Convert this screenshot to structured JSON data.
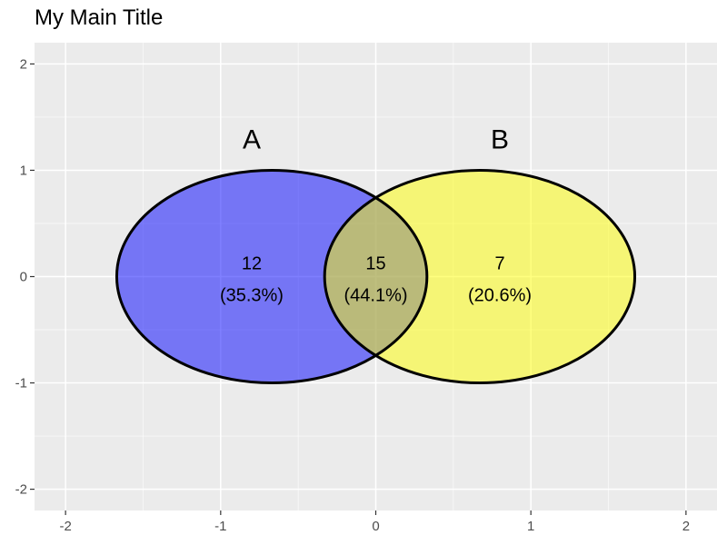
{
  "chart_data": {
    "type": "venn",
    "title": "My Main Title",
    "xlabel": "",
    "ylabel": "",
    "xlim": [
      -2.2,
      2.2
    ],
    "ylim": [
      -2.2,
      2.2
    ],
    "x_ticks": [
      -2,
      -1,
      0,
      1,
      2
    ],
    "y_ticks": [
      -2,
      -1,
      0,
      1,
      2
    ],
    "x_tick_labels": [
      "-2",
      "-1",
      "0",
      "1",
      "2"
    ],
    "y_tick_labels": [
      "-2",
      "-1",
      "0",
      "1",
      "2"
    ],
    "grid": true,
    "background": "#ebebeb",
    "sets": [
      {
        "name": "A",
        "cx": -0.67,
        "cy": 0,
        "r": 1,
        "fill": "#0000ff",
        "opacity": 0.5,
        "label_x": -0.8,
        "label_y": 1.3
      },
      {
        "name": "B",
        "cx": 0.67,
        "cy": 0,
        "r": 1,
        "fill": "#ffff00",
        "opacity": 0.5,
        "label_x": 0.8,
        "label_y": 1.3
      }
    ],
    "regions": [
      {
        "id": "A-only",
        "count": "12",
        "percent": "(35.3%)",
        "x": -0.8,
        "y": 0
      },
      {
        "id": "A-and-B",
        "count": "15",
        "percent": "(44.1%)",
        "x": 0,
        "y": 0
      },
      {
        "id": "B-only",
        "count": "7",
        "percent": "(20.6%)",
        "x": 0.8,
        "y": 0
      }
    ]
  }
}
